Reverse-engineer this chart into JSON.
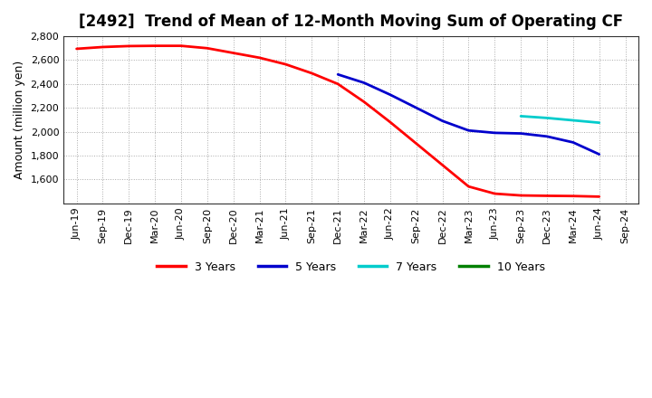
{
  "title": "[2492]  Trend of Mean of 12-Month Moving Sum of Operating CF",
  "ylabel": "Amount (million yen)",
  "background_color": "#ffffff",
  "plot_bg_color": "#ffffff",
  "ylim": [
    1400,
    2800
  ],
  "yticks": [
    1600,
    1800,
    2000,
    2200,
    2400,
    2600,
    2800
  ],
  "x_labels": [
    "Jun-19",
    "Sep-19",
    "Dec-19",
    "Mar-20",
    "Jun-20",
    "Sep-20",
    "Dec-20",
    "Mar-21",
    "Jun-21",
    "Sep-21",
    "Dec-21",
    "Mar-22",
    "Jun-22",
    "Sep-22",
    "Dec-22",
    "Mar-23",
    "Jun-23",
    "Sep-23",
    "Dec-23",
    "Mar-24",
    "Jun-24",
    "Sep-24"
  ],
  "series": {
    "3 Years": {
      "color": "#ff0000",
      "data_indices": [
        0,
        1,
        2,
        3,
        4,
        5,
        6,
        7,
        8,
        9,
        10,
        11,
        12,
        13,
        14,
        15,
        16,
        17,
        18,
        19,
        20
      ],
      "values": [
        2695,
        2710,
        2718,
        2720,
        2720,
        2700,
        2660,
        2620,
        2565,
        2490,
        2400,
        2250,
        2080,
        1900,
        1720,
        1540,
        1480,
        1465,
        1462,
        1460,
        1455
      ]
    },
    "5 Years": {
      "color": "#0000cc",
      "data_indices": [
        10,
        11,
        12,
        13,
        14,
        15,
        16,
        17,
        18,
        19,
        20
      ],
      "values": [
        2480,
        2410,
        2310,
        2200,
        2090,
        2010,
        1990,
        1985,
        1960,
        1910,
        1810
      ]
    },
    "7 Years": {
      "color": "#00cccc",
      "data_indices": [
        17,
        18,
        19,
        20
      ],
      "values": [
        2130,
        2115,
        2095,
        2075
      ]
    },
    "10 Years": {
      "color": "#008000",
      "data_indices": [],
      "values": []
    }
  },
  "legend_order": [
    "3 Years",
    "5 Years",
    "7 Years",
    "10 Years"
  ],
  "legend_colors": [
    "#ff0000",
    "#0000cc",
    "#00cccc",
    "#008000"
  ],
  "line_width": 2.0,
  "grid_color": "#aaaaaa",
  "grid_style": ":",
  "title_fontsize": 12,
  "axis_label_fontsize": 9,
  "tick_fontsize": 8,
  "legend_fontsize": 9
}
